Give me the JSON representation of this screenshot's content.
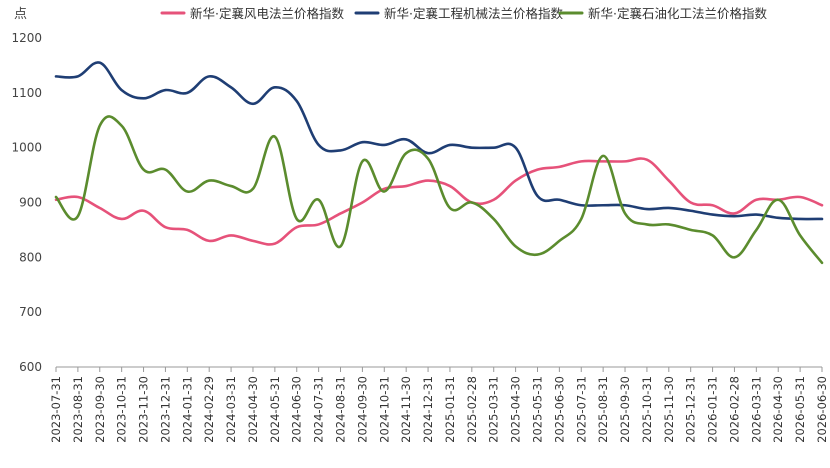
{
  "chart_data": {
    "type": "line",
    "y_unit_label": "点",
    "ylim": [
      600,
      1200
    ],
    "yticks": [
      600,
      700,
      800,
      900,
      1000,
      1100,
      1200
    ],
    "grid": false,
    "legend_position": "top",
    "x": [
      "2023-07-31",
      "2023-08-31",
      "2023-09-30",
      "2023-10-31",
      "2023-11-30",
      "2023-12-31",
      "2024-01-31",
      "2024-02-29",
      "2024-03-31",
      "2024-04-30",
      "2024-05-31",
      "2024-06-30",
      "2024-07-31",
      "2024-08-31",
      "2024-09-30",
      "2024-10-31",
      "2024-11-30",
      "2024-12-31",
      "2025-01-31",
      "2025-02-28",
      "2025-03-31",
      "2025-04-30",
      "2025-05-31",
      "2025-06-30",
      "2025-07-31",
      "2025-08-31",
      "2025-09-30",
      "2025-10-31",
      "2025-11-30",
      "2025-12-31",
      "2026-01-31",
      "2026-02-28",
      "2026-03-31",
      "2026-04-30",
      "2026-05-31",
      "2026-06-30"
    ],
    "series": [
      {
        "name": "新华·定襄风电法兰价格指数",
        "color": "#e6527a",
        "values": [
          905,
          910,
          890,
          870,
          885,
          855,
          850,
          830,
          840,
          830,
          825,
          855,
          860,
          880,
          900,
          925,
          930,
          940,
          930,
          900,
          905,
          940,
          960,
          965,
          975,
          975,
          975,
          978,
          940,
          900,
          895,
          880,
          905,
          905,
          910,
          895
        ]
      },
      {
        "name": "新华·定襄工程机械法兰价格指数",
        "color": "#1f3e74",
        "values": [
          1130,
          1130,
          1155,
          1105,
          1090,
          1105,
          1100,
          1130,
          1110,
          1080,
          1110,
          1085,
          1005,
          995,
          1010,
          1005,
          1015,
          990,
          1005,
          1000,
          1000,
          1000,
          912,
          905,
          895,
          895,
          895,
          888,
          890,
          885,
          878,
          875,
          878,
          872,
          870,
          870
        ]
      },
      {
        "name": "新华·定襄石油化工法兰价格指数",
        "color": "#5b8c2e",
        "values": [
          910,
          875,
          1040,
          1040,
          960,
          960,
          920,
          940,
          930,
          925,
          1020,
          870,
          905,
          820,
          975,
          920,
          990,
          980,
          890,
          900,
          870,
          820,
          805,
          830,
          870,
          985,
          880,
          860,
          860,
          850,
          840,
          800,
          850,
          905,
          840,
          790
        ]
      }
    ]
  }
}
